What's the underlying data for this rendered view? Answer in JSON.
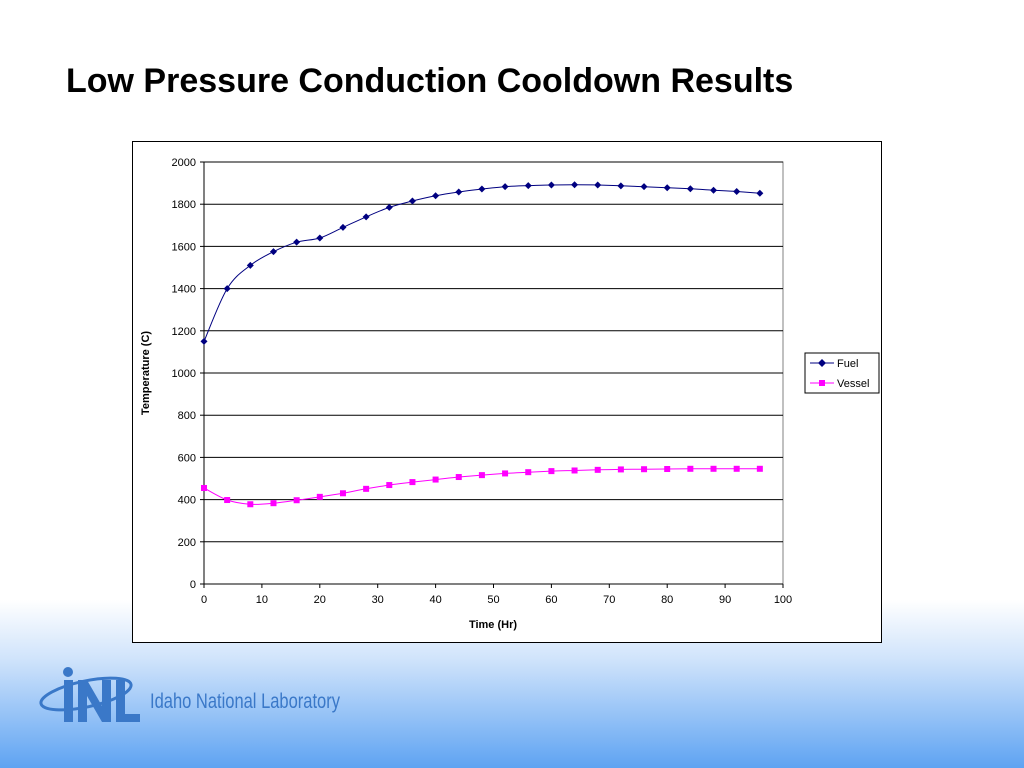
{
  "slide": {
    "title": "Low Pressure Conduction Cooldown Results"
  },
  "logo": {
    "mark_text": "INL",
    "name": "Idaho National Laboratory"
  },
  "colors": {
    "fuel": "#000080",
    "vessel": "#ff00ff",
    "gridline": "#000000",
    "logo_blue": "#3a78c8"
  },
  "chart_data": {
    "type": "line",
    "title": "",
    "xlabel": "Time (Hr)",
    "ylabel": "Temperature (C)",
    "xlim": [
      0,
      100
    ],
    "ylim": [
      0,
      2000
    ],
    "x_ticks": [
      0,
      10,
      20,
      30,
      40,
      50,
      60,
      70,
      80,
      90,
      100
    ],
    "y_ticks": [
      0,
      200,
      400,
      600,
      800,
      1000,
      1200,
      1400,
      1600,
      1800,
      2000
    ],
    "grid": "horizontal",
    "legend_position": "right",
    "series": [
      {
        "name": "Fuel",
        "marker": "diamond",
        "color": "#000080",
        "x": [
          0,
          4,
          8,
          12,
          16,
          20,
          24,
          28,
          32,
          36,
          40,
          44,
          48,
          52,
          56,
          60,
          64,
          68,
          72,
          76,
          80,
          84,
          88,
          92,
          96
        ],
        "y": [
          1150,
          1400,
          1510,
          1575,
          1620,
          1640,
          1690,
          1740,
          1785,
          1815,
          1840,
          1858,
          1872,
          1883,
          1888,
          1891,
          1892,
          1891,
          1887,
          1883,
          1878,
          1873,
          1866,
          1860,
          1852
        ]
      },
      {
        "name": "Vessel",
        "marker": "square",
        "color": "#ff00ff",
        "x": [
          0,
          4,
          8,
          12,
          16,
          20,
          24,
          28,
          32,
          36,
          40,
          44,
          48,
          52,
          56,
          60,
          64,
          68,
          72,
          76,
          80,
          84,
          88,
          92,
          96
        ],
        "y": [
          455,
          398,
          378,
          383,
          397,
          413,
          430,
          451,
          469,
          483,
          495,
          507,
          516,
          524,
          530,
          535,
          538,
          541,
          543,
          544,
          545,
          546,
          546,
          546,
          546
        ]
      }
    ]
  }
}
